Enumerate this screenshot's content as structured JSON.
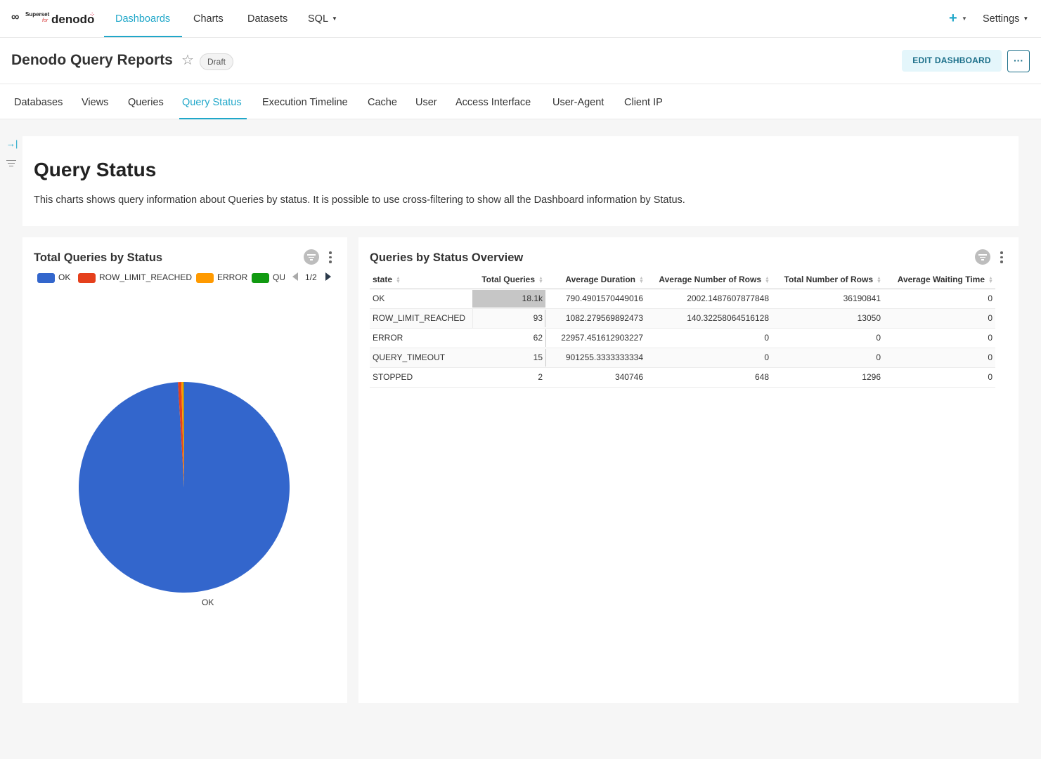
{
  "logo": {
    "small": "Superset",
    "for": "for",
    "brand": "denodo"
  },
  "nav": {
    "items": [
      "Dashboards",
      "Charts",
      "Datasets",
      "SQL"
    ],
    "active": "Dashboards",
    "settings": "Settings",
    "plus": "+"
  },
  "header": {
    "title": "Denodo Query Reports",
    "badge": "Draft",
    "edit_button": "EDIT DASHBOARD",
    "more_button": "···"
  },
  "tabs": {
    "items": [
      "Databases",
      "Views",
      "Queries",
      "Query Status",
      "Execution Timeline",
      "Cache",
      "User",
      "Access Interface",
      "User-Agent",
      "Client IP"
    ],
    "active": "Query Status"
  },
  "intro": {
    "title": "Query Status",
    "description": "This charts shows query information about Queries by status. It is possible to use cross-filtering to show all the Dashboard information by Status."
  },
  "pie_card": {
    "title": "Total Queries by Status",
    "legend_page": "1/2",
    "legend": [
      {
        "label": "OK",
        "color": "#3366cc"
      },
      {
        "label": "ROW_LIMIT_REACHED",
        "color": "#e5401c"
      },
      {
        "label": "ERROR",
        "color": "#ff9a00"
      },
      {
        "label": "QUERY_TIMEOUT",
        "color": "#119a11"
      }
    ],
    "slice_label": "OK"
  },
  "chart_data": {
    "type": "pie",
    "categories": [
      "OK",
      "ROW_LIMIT_REACHED",
      "ERROR",
      "QUERY_TIMEOUT",
      "STOPPED"
    ],
    "values": [
      18072,
      93,
      62,
      15,
      2
    ],
    "colors": [
      "#3366cc",
      "#e5401c",
      "#ff9a00",
      "#119a11",
      "#990099"
    ],
    "title": "Total Queries by Status",
    "legend_position": "top"
  },
  "table_card": {
    "title": "Queries by Status Overview",
    "columns": [
      "state",
      "Total Queries",
      "Average Duration",
      "Average Number of Rows",
      "Total Number of Rows",
      "Average Waiting Time"
    ],
    "rows": [
      {
        "state": "OK",
        "total": "18.1k",
        "total_fraction": 1.0,
        "avg_duration": "790.4901570449016",
        "avg_rows": "2002.1487607877848",
        "total_rows": "36190841",
        "avg_wait": "0"
      },
      {
        "state": "ROW_LIMIT_REACHED",
        "total": "93",
        "total_fraction": 0.005,
        "avg_duration": "1082.279569892473",
        "avg_rows": "140.32258064516128",
        "total_rows": "13050",
        "avg_wait": "0"
      },
      {
        "state": "ERROR",
        "total": "62",
        "total_fraction": 0.003,
        "avg_duration": "22957.451612903227",
        "avg_rows": "0",
        "total_rows": "0",
        "avg_wait": "0"
      },
      {
        "state": "QUERY_TIMEOUT",
        "total": "15",
        "total_fraction": 0.001,
        "avg_duration": "901255.3333333334",
        "avg_rows": "0",
        "total_rows": "0",
        "avg_wait": "0"
      },
      {
        "state": "STOPPED",
        "total": "2",
        "total_fraction": 0.0,
        "avg_duration": "340746",
        "avg_rows": "648",
        "total_rows": "1296",
        "avg_wait": "0"
      }
    ]
  },
  "icons": {
    "star": "star-icon",
    "filter": "filter-icon",
    "kebab": "kebab-icon",
    "expand": "expand-right-icon"
  }
}
